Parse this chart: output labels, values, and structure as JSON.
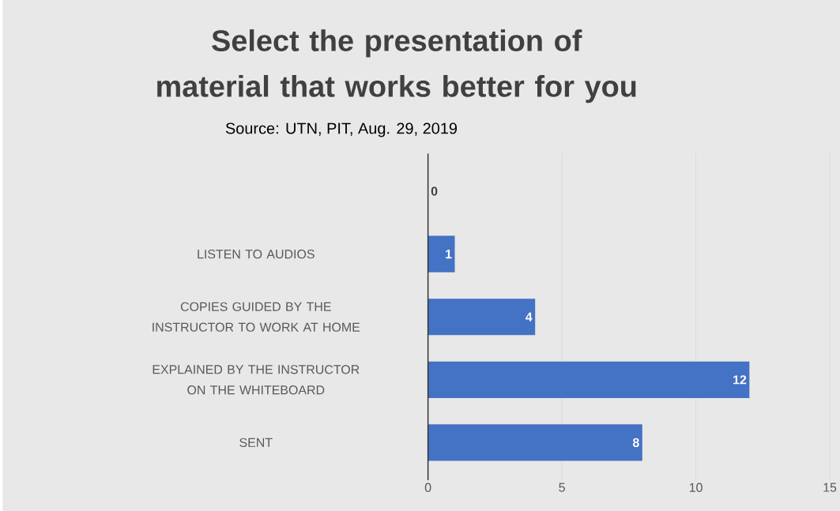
{
  "chart_data": {
    "type": "bar",
    "orientation": "horizontal",
    "title": "Select the presentation of material that works better for you",
    "annotations": [
      "Source: UTN, PIT, Aug. 29, 2019"
    ],
    "categories": [
      null,
      "LISTEN TO AUDIOS",
      "COPIES GUIDED BY THE INSTRUCTOR TO WORK AT HOME",
      "EXPLAINED BY THE INSTRUCTOR ON THE WHITEBOARD",
      "SENT"
    ],
    "values": [
      0,
      1,
      4,
      12,
      8
    ],
    "color": "#4472c4",
    "xlim": [
      0,
      15
    ],
    "xticks": [
      0,
      5,
      10,
      15
    ],
    "grid": "x",
    "data_labels": true
  }
}
